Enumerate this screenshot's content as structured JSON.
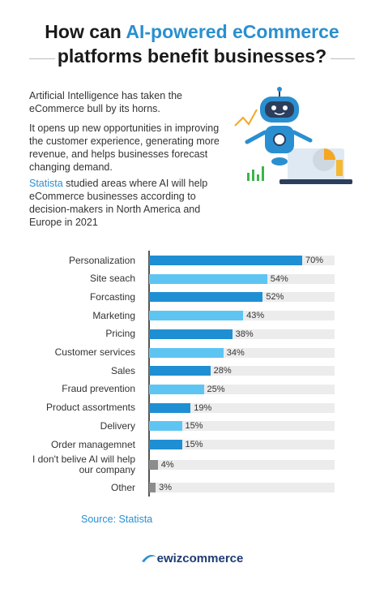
{
  "header": {
    "title_start": "How can ",
    "title_highlight": "AI-powered eCommerce",
    "title_end": "platforms benefit businesses?"
  },
  "intro": {
    "paragraph_1": "Artificial Intelligence has taken the eCommerce bull by its horns.",
    "paragraph_2": "It opens up new opportunities in improving the customer experience, generating more revenue, and helps businesses forecast changing demand.",
    "paragraph_3_link": "Statista",
    "paragraph_3": " studied areas where AI will help eCommerce businesses according to decision-makers in North America and Europe in 2021"
  },
  "chart_data": {
    "type": "bar",
    "orientation": "horizontal",
    "categories": [
      "Personalization",
      "Site seach",
      "Forcasting",
      "Marketing",
      "Pricing",
      "Customer services",
      "Sales",
      "Fraud prevention",
      "Product assortments",
      "Delivery",
      "Order managemnet",
      "I don't belive AI will help our company",
      "Other"
    ],
    "values": [
      70,
      54,
      52,
      43,
      38,
      34,
      28,
      25,
      19,
      15,
      15,
      4,
      3
    ],
    "value_labels": [
      "70%",
      "54%",
      "52%",
      "43%",
      "38%",
      "34%",
      "28%",
      "25%",
      "19%",
      "15%",
      "15%",
      "4%",
      "3%"
    ],
    "colors": [
      "#1f8fd3",
      "#5ec5f2",
      "#1f8fd3",
      "#5ec5f2",
      "#1f8fd3",
      "#5ec5f2",
      "#1f8fd3",
      "#5ec5f2",
      "#1f8fd3",
      "#5ec5f2",
      "#1f8fd3",
      "#8c8c8c",
      "#8c8c8c"
    ]
  },
  "footer": {
    "source": "Source: Statista",
    "brand": "ewizcommerce"
  }
}
